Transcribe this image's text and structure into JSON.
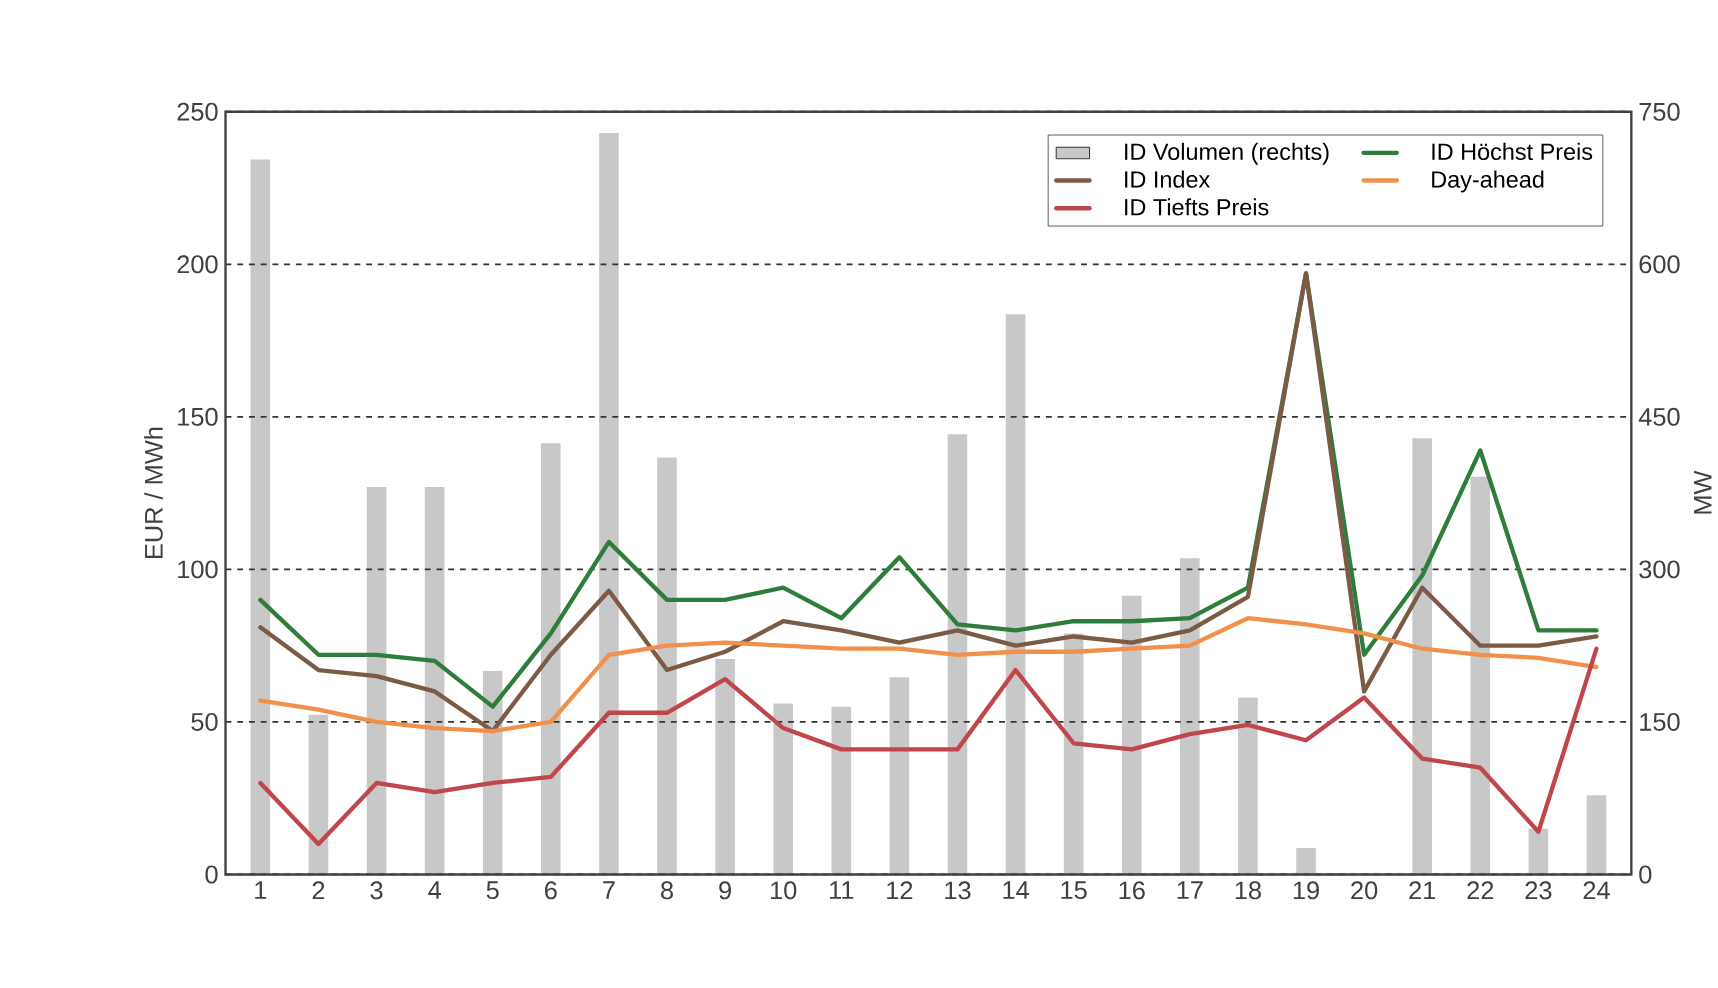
{
  "chart_data": {
    "type": "line",
    "xlabel": null,
    "ylabel": "EUR / MWh",
    "y2label": "MW",
    "categories": [
      "1",
      "2",
      "3",
      "4",
      "5",
      "6",
      "7",
      "8",
      "9",
      "10",
      "11",
      "12",
      "13",
      "14",
      "15",
      "16",
      "17",
      "18",
      "19",
      "20",
      "21",
      "22",
      "23",
      "24"
    ],
    "series": [
      {
        "name": "ID Volumen (rechts)",
        "type": "bar",
        "axis": "y2",
        "color": "#c8c8c8",
        "values": [
          703,
          157,
          381,
          381,
          200,
          424,
          729,
          410,
          212,
          168,
          165,
          194,
          433,
          551,
          237,
          274,
          311,
          174,
          26,
          null,
          429,
          391,
          45,
          78
        ]
      },
      {
        "name": "ID Höchst Preis",
        "color": "#2e7d3c",
        "values": [
          90,
          72,
          72,
          70,
          55,
          79,
          109,
          90,
          90,
          94,
          84,
          104,
          82,
          80,
          83,
          83,
          84,
          94,
          197,
          72,
          98,
          139,
          80,
          80
        ]
      },
      {
        "name": "ID Index",
        "color": "#7b5a46",
        "values": [
          81,
          67,
          65,
          60,
          47,
          72,
          93,
          67,
          73,
          83,
          80,
          76,
          80,
          75,
          78,
          76,
          80,
          91,
          197,
          60,
          94,
          75,
          75,
          78
        ]
      },
      {
        "name": "Day-ahead",
        "color": "#f0904a",
        "values": [
          57,
          54,
          50,
          48,
          47,
          50,
          72,
          75,
          76,
          75,
          74,
          74,
          72,
          73,
          73,
          74,
          75,
          84,
          82,
          79,
          74,
          72,
          71,
          68
        ]
      },
      {
        "name": "ID Tiefts Preis",
        "color": "#c0464b",
        "values": [
          30,
          10,
          30,
          27,
          30,
          32,
          53,
          53,
          64,
          48,
          41,
          41,
          41,
          67,
          43,
          41,
          46,
          49,
          44,
          58,
          38,
          35,
          14,
          74
        ]
      }
    ],
    "ylim": [
      0,
      250
    ],
    "yticks": [
      0,
      50,
      100,
      150,
      200,
      250
    ],
    "y2lim": [
      0,
      750
    ],
    "y2ticks": [
      0,
      150,
      300,
      450,
      600,
      750
    ],
    "grid": "y",
    "legend": "top right",
    "line_style": "solid",
    "marker": "none"
  }
}
